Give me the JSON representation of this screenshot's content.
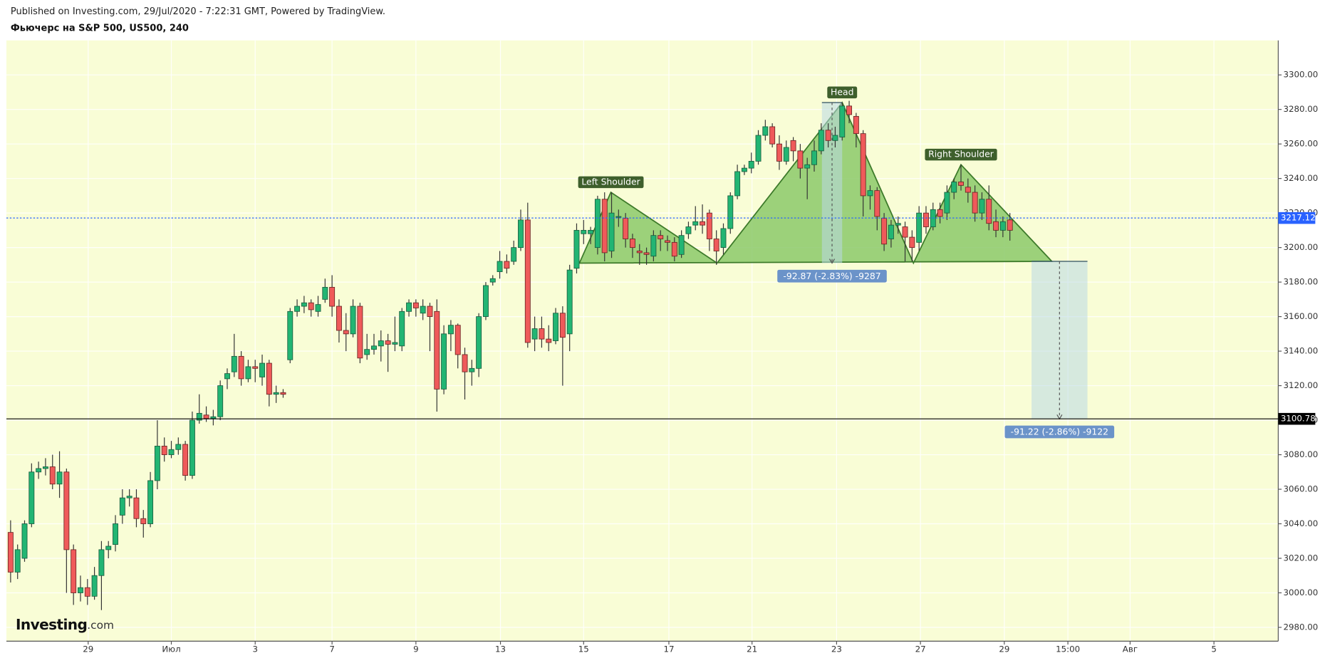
{
  "header": {
    "published": "Published on Investing.com, 29/Jul/2020 - 7:22:31 GMT, Powered by TradingView.",
    "title": "Фьючерс на S&P 500, US500, 240"
  },
  "chart_data": {
    "type": "candlestick",
    "up_color": "#22b573",
    "down_color": "#ef5a5a",
    "background": "#f9fdd6",
    "grid": true,
    "xlim": [
      -0.6,
      181.4
    ],
    "ylim": [
      2972,
      3320
    ],
    "xticks": [
      {
        "value": 11.1,
        "label": "29"
      },
      {
        "value": 23.0,
        "label": "Июл"
      },
      {
        "value": 35.0,
        "label": "3"
      },
      {
        "value": 46.0,
        "label": "7"
      },
      {
        "value": 58.0,
        "label": "9"
      },
      {
        "value": 70.1,
        "label": "13"
      },
      {
        "value": 82.0,
        "label": "15"
      },
      {
        "value": 94.2,
        "label": "17"
      },
      {
        "value": 106.1,
        "label": "21"
      },
      {
        "value": 118.2,
        "label": "23"
      },
      {
        "value": 130.2,
        "label": "27"
      },
      {
        "value": 142.2,
        "label": "29"
      },
      {
        "value": 151.3,
        "label": "15:00"
      },
      {
        "value": 160.2,
        "label": "Авг"
      },
      {
        "value": 172.2,
        "label": "5"
      }
    ],
    "yticks": [
      {
        "value": 2980,
        "label": "2980.00"
      },
      {
        "value": 3000,
        "label": "3000.00"
      },
      {
        "value": 3020,
        "label": "3020.00"
      },
      {
        "value": 3040,
        "label": "3040.00"
      },
      {
        "value": 3060,
        "label": "3060.00"
      },
      {
        "value": 3080,
        "label": "3080.00"
      },
      {
        "value": 3100,
        "label": "3100.00"
      },
      {
        "value": 3120,
        "label": "3120.00"
      },
      {
        "value": 3140,
        "label": "3140.00"
      },
      {
        "value": 3160,
        "label": "3160.00"
      },
      {
        "value": 3180,
        "label": "3180.00"
      },
      {
        "value": 3200,
        "label": "3200.00"
      },
      {
        "value": 3220,
        "label": "3220.00"
      },
      {
        "value": 3240,
        "label": "3240.00"
      },
      {
        "value": 3260,
        "label": "3260.00"
      },
      {
        "value": 3280,
        "label": "3280.00"
      },
      {
        "value": 3300,
        "label": "3300.00"
      }
    ],
    "ohlc": [
      [
        3035,
        3042,
        3006,
        3012
      ],
      [
        3012,
        3028,
        3008,
        3025
      ],
      [
        3020,
        3042,
        3018,
        3040
      ],
      [
        3040,
        3075,
        3038,
        3070
      ],
      [
        3070,
        3076,
        3066,
        3072
      ],
      [
        3072,
        3078,
        3068,
        3073
      ],
      [
        3073,
        3080,
        3060,
        3063
      ],
      [
        3063,
        3082,
        3055,
        3070
      ],
      [
        3070,
        3072,
        3000,
        3025
      ],
      [
        3025,
        3028,
        2993,
        3000
      ],
      [
        3000,
        3010,
        2995,
        3003
      ],
      [
        3003,
        3008,
        2993,
        2998
      ],
      [
        2998,
        3015,
        2996,
        3010
      ],
      [
        3010,
        3030,
        2990,
        3025
      ],
      [
        3025,
        3030,
        3020,
        3027
      ],
      [
        3028,
        3045,
        3024,
        3040
      ],
      [
        3045,
        3060,
        3040,
        3055
      ],
      [
        3055,
        3060,
        3050,
        3056
      ],
      [
        3055,
        3060,
        3038,
        3043
      ],
      [
        3043,
        3048,
        3032,
        3040
      ],
      [
        3040,
        3070,
        3038,
        3065
      ],
      [
        3065,
        3100,
        3060,
        3085
      ],
      [
        3085,
        3090,
        3076,
        3080
      ],
      [
        3080,
        3088,
        3078,
        3083
      ],
      [
        3083,
        3090,
        3080,
        3086
      ],
      [
        3086,
        3088,
        3065,
        3068
      ],
      [
        3068,
        3105,
        3066,
        3100
      ],
      [
        3100,
        3115,
        3098,
        3104
      ],
      [
        3103,
        3108,
        3099,
        3101
      ],
      [
        3101,
        3106,
        3097,
        3102
      ],
      [
        3102,
        3123,
        3100,
        3120
      ],
      [
        3124,
        3130,
        3118,
        3127
      ],
      [
        3128,
        3150,
        3125,
        3137
      ],
      [
        3137,
        3140,
        3120,
        3124
      ],
      [
        3124,
        3135,
        3122,
        3131
      ],
      [
        3131,
        3135,
        3122,
        3130
      ],
      [
        3125,
        3138,
        3120,
        3133
      ],
      [
        3133,
        3135,
        3108,
        3115
      ],
      [
        3115,
        3120,
        3110,
        3116
      ],
      [
        3116,
        3118,
        3113,
        3115
      ],
      [
        3135,
        3165,
        3133,
        3163
      ],
      [
        3163,
        3170,
        3160,
        3166
      ],
      [
        3166,
        3172,
        3162,
        3168
      ],
      [
        3168,
        3170,
        3160,
        3164
      ],
      [
        3163,
        3172,
        3160,
        3167
      ],
      [
        3170,
        3182,
        3168,
        3177
      ],
      [
        3177,
        3184,
        3160,
        3166
      ],
      [
        3166,
        3170,
        3145,
        3152
      ],
      [
        3152,
        3162,
        3140,
        3150
      ],
      [
        3150,
        3170,
        3148,
        3166
      ],
      [
        3166,
        3168,
        3133,
        3136
      ],
      [
        3138,
        3150,
        3135,
        3141
      ],
      [
        3141,
        3150,
        3138,
        3143
      ],
      [
        3143,
        3152,
        3134,
        3146
      ],
      [
        3146,
        3150,
        3128,
        3144
      ],
      [
        3144,
        3160,
        3140,
        3145
      ],
      [
        3143,
        3165,
        3140,
        3163
      ],
      [
        3163,
        3170,
        3160,
        3168
      ],
      [
        3168,
        3170,
        3160,
        3165
      ],
      [
        3162,
        3170,
        3158,
        3166
      ],
      [
        3166,
        3168,
        3140,
        3160
      ],
      [
        3163,
        3170,
        3105,
        3118
      ],
      [
        3118,
        3155,
        3115,
        3150
      ],
      [
        3150,
        3158,
        3140,
        3155
      ],
      [
        3155,
        3156,
        3130,
        3138
      ],
      [
        3138,
        3142,
        3112,
        3128
      ],
      [
        3128,
        3135,
        3120,
        3130
      ],
      [
        3130,
        3162,
        3125,
        3160
      ],
      [
        3160,
        3180,
        3158,
        3178
      ],
      [
        3180,
        3184,
        3178,
        3182
      ],
      [
        3186,
        3198,
        3182,
        3192
      ],
      [
        3192,
        3196,
        3185,
        3188
      ],
      [
        3192,
        3204,
        3190,
        3200
      ],
      [
        3200,
        3222,
        3198,
        3216
      ],
      [
        3216,
        3226,
        3142,
        3145
      ],
      [
        3147,
        3160,
        3140,
        3153
      ],
      [
        3153,
        3160,
        3142,
        3147
      ],
      [
        3147,
        3155,
        3140,
        3145
      ],
      [
        3146,
        3165,
        3144,
        3162
      ],
      [
        3162,
        3166,
        3120,
        3148
      ],
      [
        3150,
        3190,
        3140,
        3187
      ],
      [
        3188,
        3214,
        3185,
        3210
      ],
      [
        3208,
        3216,
        3202,
        3210
      ],
      [
        3208,
        3212,
        3202,
        3210
      ],
      [
        3200,
        3230,
        3196,
        3228
      ],
      [
        3228,
        3232,
        3192,
        3197
      ],
      [
        3198,
        3232,
        3194,
        3220
      ],
      [
        3218,
        3222,
        3212,
        3218
      ],
      [
        3217,
        3220,
        3200,
        3205
      ],
      [
        3205,
        3208,
        3194,
        3200
      ],
      [
        3198,
        3202,
        3190,
        3197
      ],
      [
        3197,
        3200,
        3190,
        3196
      ],
      [
        3195,
        3210,
        3192,
        3207
      ],
      [
        3207,
        3210,
        3198,
        3205
      ],
      [
        3204,
        3207,
        3198,
        3203
      ],
      [
        3203,
        3206,
        3192,
        3195
      ],
      [
        3196,
        3210,
        3194,
        3207
      ],
      [
        3208,
        3215,
        3205,
        3212
      ],
      [
        3213,
        3224,
        3210,
        3215
      ],
      [
        3215,
        3225,
        3208,
        3213
      ],
      [
        3220,
        3222,
        3198,
        3205
      ],
      [
        3205,
        3210,
        3190,
        3198
      ],
      [
        3200,
        3214,
        3196,
        3211
      ],
      [
        3211,
        3232,
        3208,
        3230
      ],
      [
        3230,
        3248,
        3228,
        3244
      ],
      [
        3244,
        3248,
        3242,
        3246
      ],
      [
        3246,
        3255,
        3243,
        3250
      ],
      [
        3250,
        3268,
        3248,
        3265
      ],
      [
        3265,
        3274,
        3262,
        3270
      ],
      [
        3270,
        3272,
        3258,
        3260
      ],
      [
        3260,
        3265,
        3245,
        3250
      ],
      [
        3250,
        3262,
        3248,
        3258
      ],
      [
        3262,
        3264,
        3250,
        3256
      ],
      [
        3256,
        3260,
        3240,
        3246
      ],
      [
        3246,
        3252,
        3228,
        3248
      ],
      [
        3248,
        3262,
        3244,
        3256
      ],
      [
        3256,
        3272,
        3254,
        3268
      ],
      [
        3268,
        3272,
        3258,
        3262
      ],
      [
        3262,
        3270,
        3258,
        3265
      ],
      [
        3264,
        3284,
        3262,
        3282
      ],
      [
        3282,
        3285,
        3272,
        3277
      ],
      [
        3276,
        3278,
        3258,
        3266
      ],
      [
        3266,
        3268,
        3218,
        3230
      ],
      [
        3230,
        3236,
        3222,
        3233
      ],
      [
        3233,
        3235,
        3210,
        3218
      ],
      [
        3217,
        3220,
        3198,
        3202
      ],
      [
        3205,
        3216,
        3200,
        3213
      ],
      [
        3213,
        3218,
        3208,
        3214
      ],
      [
        3212,
        3215,
        3192,
        3206
      ],
      [
        3206,
        3210,
        3192,
        3200
      ],
      [
        3203,
        3224,
        3198,
        3220
      ],
      [
        3220,
        3224,
        3208,
        3212
      ],
      [
        3212,
        3226,
        3210,
        3222
      ],
      [
        3222,
        3226,
        3214,
        3218
      ],
      [
        3220,
        3236,
        3216,
        3232
      ],
      [
        3232,
        3240,
        3228,
        3238
      ],
      [
        3238,
        3248,
        3233,
        3236
      ],
      [
        3235,
        3240,
        3226,
        3232
      ],
      [
        3232,
        3236,
        3215,
        3220
      ],
      [
        3220,
        3232,
        3216,
        3228
      ],
      [
        3228,
        3236,
        3210,
        3214
      ],
      [
        3215,
        3222,
        3206,
        3210
      ],
      [
        3210,
        3218,
        3206,
        3215
      ],
      [
        3216,
        3220,
        3204,
        3210
      ]
    ],
    "levels": [
      {
        "value": 3217.12,
        "color": "#2962ff",
        "dashed": true
      },
      {
        "value": 3100.78,
        "color": "#000000",
        "dashed": false
      }
    ],
    "pattern": {
      "fill": "#8cc96a",
      "stroke": "#3d7a2a",
      "points": [
        [
          81.4,
          3191
        ],
        [
          85.9,
          3232
        ],
        [
          101.1,
          3191
        ],
        [
          119.0,
          3284
        ],
        [
          129.2,
          3191
        ],
        [
          136.0,
          3248
        ],
        [
          149.0,
          3192
        ]
      ],
      "labels": [
        "Left Shoulder",
        "Head",
        "Right Shoulder"
      ]
    },
    "measures": [
      {
        "x": [
          116.1,
          119.0
        ],
        "y": [
          3284,
          3191
        ],
        "label": "-92.87 (-2.83%) -9287"
      },
      {
        "x": [
          146.1,
          154.1
        ],
        "y": [
          3192,
          3100.78
        ],
        "label": "-91.22 (-2.86%) -9122"
      }
    ],
    "watermark": [
      "Investing",
      ".com"
    ]
  }
}
